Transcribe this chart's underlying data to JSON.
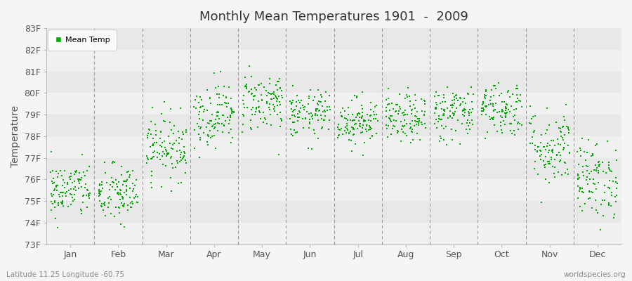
{
  "title": "Monthly Mean Temperatures 1901  -  2009",
  "ylabel": "Temperature",
  "xlabel_labels": [
    "Jan",
    "Feb",
    "Mar",
    "Apr",
    "May",
    "Jun",
    "Jul",
    "Aug",
    "Sep",
    "Oct",
    "Nov",
    "Dec"
  ],
  "footer_left": "Latitude 11.25 Longitude -60.75",
  "footer_right": "worldspecies.org",
  "legend_label": "Mean Temp",
  "dot_color": "#00aa00",
  "dot_size": 3.5,
  "ylim_min": 73,
  "ylim_max": 83,
  "ytick_labels": [
    "73F",
    "74F",
    "75F",
    "76F",
    "77F",
    "78F",
    "79F",
    "80F",
    "81F",
    "82F",
    "83F"
  ],
  "ytick_values": [
    73,
    74,
    75,
    76,
    77,
    78,
    79,
    80,
    81,
    82,
    83
  ],
  "background_color": "#f5f5f5",
  "plot_bg_color": "#ffffff",
  "num_years": 109,
  "seed": 42,
  "monthly_means": [
    75.5,
    75.3,
    77.5,
    79.0,
    79.6,
    79.0,
    78.7,
    78.8,
    79.1,
    79.3,
    77.5,
    76.0
  ],
  "monthly_stds": [
    0.65,
    0.7,
    0.75,
    0.75,
    0.7,
    0.55,
    0.55,
    0.55,
    0.65,
    0.65,
    0.9,
    0.9
  ],
  "band_color_light": "#f0f0f0",
  "band_color_dark": "#e8e8e8"
}
